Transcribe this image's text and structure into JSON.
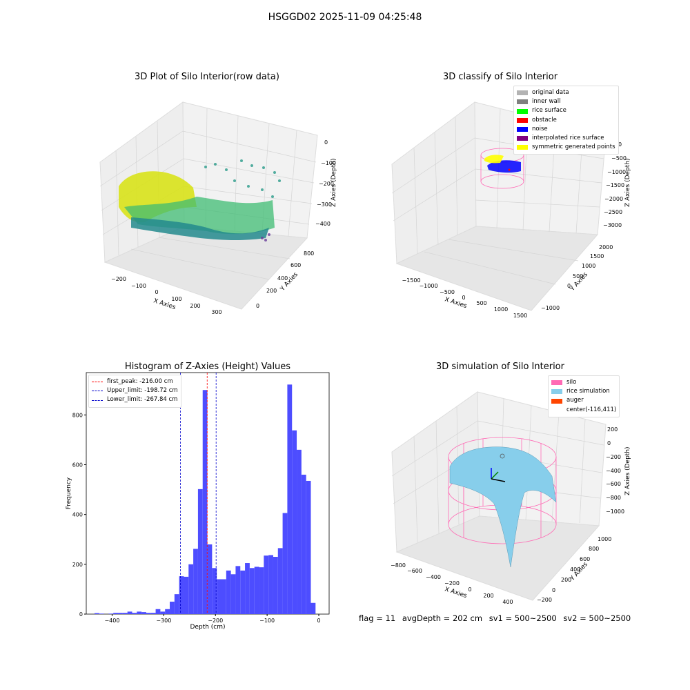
{
  "suptitle": "HSGGD02 2025-11-09 04:25:48",
  "panels": {
    "raw": {
      "title": "3D Plot of Silo Interior(row data)",
      "xlabel": "X Axies",
      "ylabel": "Y Axies",
      "zlabel": "Z Axies (Depth)",
      "xticks": [
        "−200",
        "−100",
        "0",
        "100",
        "200",
        "300"
      ],
      "yticks": [
        "0",
        "200",
        "400",
        "600",
        "800"
      ],
      "zticks": [
        "0",
        "−100",
        "−200",
        "−300",
        "−400"
      ]
    },
    "classify": {
      "title": "3D classify of Silo Interior",
      "xlabel": "X Axies",
      "ylabel": "Y Axies",
      "zlabel": "Z Axies (Depth)",
      "xticks": [
        "−1500",
        "−1000",
        "−500",
        "0",
        "500",
        "1000",
        "1500"
      ],
      "yticks": [
        "−1000",
        "0",
        "500",
        "1000",
        "1500",
        "2000"
      ],
      "zticks": [
        "0",
        "−500",
        "−1000",
        "−1500",
        "−2000",
        "−2500",
        "−3000"
      ],
      "legend": [
        {
          "label": "original data",
          "color": "#b3b3b3"
        },
        {
          "label": "inner wall",
          "color": "#808080"
        },
        {
          "label": "rice surface",
          "color": "#00ff00"
        },
        {
          "label": "obstacle",
          "color": "#ff0000"
        },
        {
          "label": "noise",
          "color": "#0000ff"
        },
        {
          "label": "interpolated rice surface",
          "color": "#800080"
        },
        {
          "label": "symmetric generated points",
          "color": "#ffff00"
        }
      ]
    },
    "histogram": {
      "title": "Histogram of Z-Axies (Height) Values",
      "legend": [
        {
          "label": "first_peak: -216.00 cm",
          "color": "#ff0000"
        },
        {
          "label": "Upper_limit: -198.72 cm",
          "color": "#0000cc"
        },
        {
          "label": "Lower_limit: -267.84 cm",
          "color": "#0000cc"
        }
      ]
    },
    "simulation": {
      "title": "3D simulation of Silo Interior",
      "xlabel": "X Axies",
      "ylabel": "Y Axies",
      "zlabel": "Z Axies (Depth)",
      "xticks": [
        "−800",
        "−600",
        "−400",
        "−200",
        "0",
        "200",
        "400"
      ],
      "yticks": [
        "−200",
        "0",
        "200",
        "400",
        "600",
        "800",
        "1000"
      ],
      "zticks": [
        "200",
        "0",
        "−200",
        "−400",
        "−600",
        "−800",
        "−1000"
      ],
      "legend": [
        {
          "label": "silo",
          "color": "#ff69b4"
        },
        {
          "label": "rice simulation",
          "color": "#87ceeb"
        },
        {
          "label": "auger",
          "color": "#ff4500"
        },
        {
          "label": "center(-116,411)",
          "color": ""
        }
      ]
    }
  },
  "status": {
    "flag": "flag = 11",
    "avg": "avgDepth = 202 cm",
    "sv1": "sv1 = 500~2500",
    "sv2": "sv2 = 500~2500"
  },
  "chart_data": {
    "type": "bar",
    "title": "Histogram of Z-Axies (Height) Values",
    "xlabel": "Depth (cm)",
    "ylabel": "Frequency",
    "xlim": [
      -450,
      20
    ],
    "ylim": [
      0,
      970
    ],
    "xticks": [
      -400,
      -300,
      -200,
      -100,
      0
    ],
    "yticks": [
      0,
      200,
      400,
      600,
      800
    ],
    "bar_color": "#4d4dff",
    "bin_edges_start": -434,
    "bin_width": 9.1,
    "values": [
      4,
      2,
      0,
      2,
      5,
      5,
      5,
      10,
      5,
      10,
      8,
      5,
      5,
      20,
      10,
      20,
      50,
      80,
      152,
      150,
      200,
      262,
      502,
      900,
      280,
      185,
      140,
      140,
      175,
      160,
      193,
      175,
      205,
      185,
      190,
      188,
      235,
      237,
      230,
      265,
      406,
      922,
      738,
      660,
      560,
      535,
      45
    ],
    "vlines": [
      {
        "x": -216.0,
        "label": "first_peak: -216.00 cm",
        "color": "#ff0000"
      },
      {
        "x": -198.72,
        "label": "Upper_limit: -198.72 cm",
        "color": "#0000cc"
      },
      {
        "x": -267.84,
        "label": "Lower_limit: -267.84 cm",
        "color": "#0000cc"
      }
    ],
    "legend_position": "top-left"
  }
}
